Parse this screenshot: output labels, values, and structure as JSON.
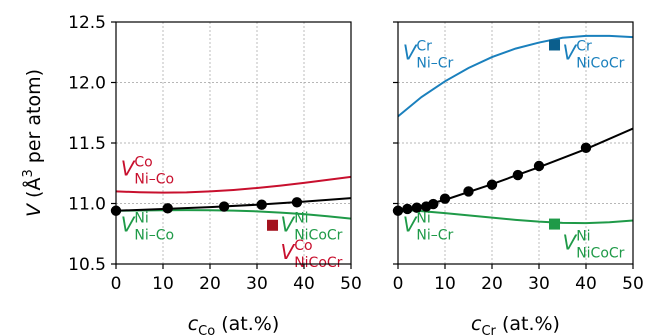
{
  "chart_data": [
    {
      "type": "scatter",
      "panel": "left",
      "xlabel_var": "c",
      "xlabel_sub": "Co",
      "xlabel_unit": " (at.%)",
      "ylabel_var": "V",
      "ylabel_unit": " (Å",
      "ylabel_sup": "3",
      "ylabel_tail": " per atom)",
      "xlim": [
        0,
        50
      ],
      "ylim": [
        10.5,
        12.5
      ],
      "grid": true,
      "xticks": [
        "0",
        "10",
        "20",
        "30",
        "40",
        "50"
      ],
      "yticks": [
        "10.5",
        "11.0",
        "11.5",
        "12.0",
        "12.5"
      ],
      "lines": [
        {
          "color": "#c8102e",
          "x": [
            0,
            5,
            10,
            15,
            20,
            25,
            30,
            35,
            40,
            45,
            50
          ],
          "y": [
            11.1,
            11.093,
            11.09,
            11.092,
            11.1,
            11.112,
            11.128,
            11.148,
            11.17,
            11.195,
            11.22
          ]
        },
        {
          "color": "#1f9a48",
          "x": [
            0,
            5,
            10,
            15,
            20,
            25,
            30,
            35,
            40,
            45,
            50
          ],
          "y": [
            10.94,
            10.942,
            10.944,
            10.945,
            10.944,
            10.941,
            10.935,
            10.925,
            10.912,
            10.895,
            10.875
          ]
        },
        {
          "color": "#000000",
          "x": [
            0,
            10,
            20,
            30,
            40,
            50
          ],
          "y": [
            10.94,
            10.955,
            10.97,
            10.99,
            11.015,
            11.045
          ]
        }
      ],
      "points": {
        "color": "#000000",
        "x": [
          0,
          11,
          23,
          31,
          38.5
        ],
        "y": [
          10.94,
          10.96,
          10.975,
          10.99,
          11.01
        ]
      },
      "squares": [
        {
          "color": "#a3121e",
          "x": 33.3,
          "y": 10.82
        }
      ],
      "annotations": [
        {
          "var": "V",
          "sup": "Co",
          "sub": "Ni–Co",
          "color": "#c8102e",
          "x": 1,
          "y": 11.23
        },
        {
          "var": "V",
          "sup": "Ni",
          "sub": "Ni–Co",
          "color": "#1f9a48",
          "x": 1,
          "y": 10.77
        },
        {
          "var": "V",
          "sup": "Ni",
          "sub": "NiCoCr",
          "color": "#1f9a48",
          "x": 35,
          "y": 10.77
        },
        {
          "var": "V",
          "sup": "Co",
          "sub": "NiCoCr",
          "color": "#c8102e",
          "x": 35,
          "y": 10.54
        }
      ]
    },
    {
      "type": "scatter",
      "panel": "right",
      "xlabel_var": "c",
      "xlabel_sub": "Cr",
      "xlabel_unit": " (at.%)",
      "xlim": [
        0,
        50
      ],
      "ylim": [
        10.5,
        12.5
      ],
      "grid": true,
      "xticks": [
        "0",
        "10",
        "20",
        "30",
        "40",
        "50"
      ],
      "lines": [
        {
          "color": "#1a80bd",
          "x": [
            0,
            5,
            10,
            15,
            20,
            25,
            30,
            35,
            40,
            45,
            50
          ],
          "y": [
            11.72,
            11.88,
            12.01,
            12.12,
            12.21,
            12.28,
            12.33,
            12.37,
            12.385,
            12.385,
            12.375
          ]
        },
        {
          "color": "#1f9a48",
          "x": [
            0,
            5,
            10,
            15,
            20,
            25,
            30,
            35,
            40,
            45,
            50
          ],
          "y": [
            10.95,
            10.937,
            10.92,
            10.902,
            10.883,
            10.865,
            10.85,
            10.84,
            10.838,
            10.845,
            10.86
          ]
        },
        {
          "color": "#000000",
          "x": [
            0,
            10,
            20,
            30,
            40,
            50
          ],
          "y": [
            10.93,
            11.03,
            11.16,
            11.3,
            11.45,
            11.62
          ]
        }
      ],
      "points": {
        "color": "#000000",
        "x": [
          0,
          2,
          4,
          6,
          7.5,
          10,
          15,
          20,
          25.5,
          30,
          40
        ],
        "y": [
          10.94,
          10.955,
          10.965,
          10.975,
          10.995,
          11.04,
          11.1,
          11.155,
          11.235,
          11.31,
          11.46
        ]
      },
      "squares": [
        {
          "color": "#0b5e8c",
          "x": 33.3,
          "y": 12.31
        },
        {
          "color": "#1f9a48",
          "x": 33.3,
          "y": 10.83
        }
      ],
      "annotations": [
        {
          "var": "V",
          "sup": "Cr",
          "sub": "Ni–Cr",
          "color": "#1a80bd",
          "x": 1,
          "y": 12.19
        },
        {
          "var": "V",
          "sup": "Ni",
          "sub": "Ni–Cr",
          "color": "#1f9a48",
          "x": 1,
          "y": 10.77
        },
        {
          "var": "V",
          "sup": "Cr",
          "sub": "NiCoCr",
          "color": "#1a80bd",
          "x": 35,
          "y": 12.19
        },
        {
          "var": "V",
          "sup": "Ni",
          "sub": "NiCoCr",
          "color": "#1f9a48",
          "x": 35,
          "y": 10.62
        }
      ]
    }
  ]
}
